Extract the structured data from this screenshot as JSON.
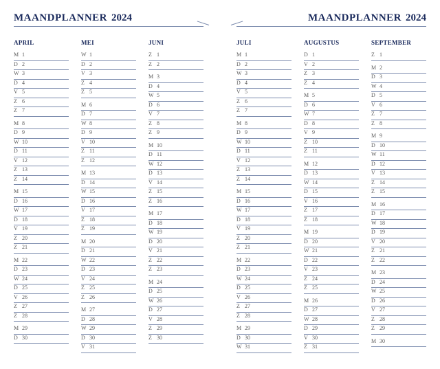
{
  "title": "MAANDPLANNER",
  "year": "2024",
  "colors": {
    "heading": "#1a2a5c",
    "rule": "#7a8aad",
    "text": "#5a5a5a",
    "background": "#ffffff"
  },
  "weekday_letters": [
    "M",
    "D",
    "W",
    "D",
    "V",
    "Z",
    "Z"
  ],
  "pages": [
    {
      "side": "left",
      "months": [
        {
          "name": "APRIL",
          "days": 30,
          "start_index": 0
        },
        {
          "name": "MEI",
          "days": 31,
          "start_index": 2
        },
        {
          "name": "JUNI",
          "days": 30,
          "start_index": 5
        }
      ]
    },
    {
      "side": "right",
      "months": [
        {
          "name": "JULI",
          "days": 31,
          "start_index": 0
        },
        {
          "name": "AUGUSTUS",
          "days": 31,
          "start_index": 3
        },
        {
          "name": "SEPTEMBER",
          "days": 30,
          "start_index": 6
        }
      ]
    }
  ]
}
